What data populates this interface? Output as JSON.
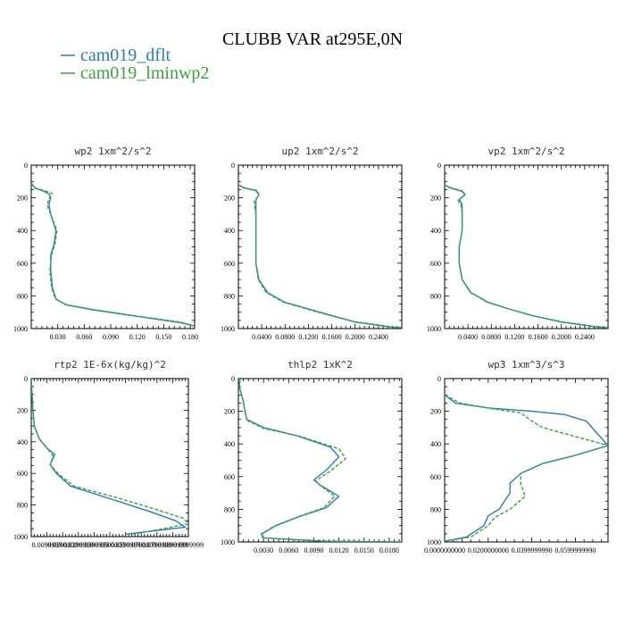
{
  "title": "CLUBB VAR at295E,0N",
  "colors": {
    "dflt": "#2b7bb9",
    "lminwp2": "#3aa43a",
    "axis": "#000000"
  },
  "legend": [
    {
      "label": "cam019_dflt",
      "color": "#2b7bb9",
      "dash": false
    },
    {
      "label": "cam019_lminwp2",
      "color": "#3aa43a",
      "dash": true
    }
  ],
  "chart_data": [
    {
      "type": "line",
      "title": "wp2  1xm^2/s^2",
      "xlim": [
        0,
        0.185
      ],
      "ylim": [
        0,
        1000
      ],
      "y_inverted": true,
      "xticks": [
        0.03,
        0.06,
        0.09,
        0.12,
        0.15,
        0.18
      ],
      "xticklabels": [
        "0.030",
        "0.060",
        "0.090",
        "0.120",
        "0.150",
        "0.180"
      ],
      "yticks": [
        0,
        200,
        400,
        600,
        800,
        1000
      ],
      "yticklabels": [
        "0",
        "200",
        "400",
        "600",
        "800",
        "1000"
      ],
      "series": [
        {
          "name": "cam019_dflt",
          "x": [
            0,
            0.004,
            0.012,
            0.02,
            0.022,
            0.02,
            0.022,
            0.028,
            0.026,
            0.022,
            0.022,
            0.024,
            0.028,
            0.04,
            0.07,
            0.12,
            0.17,
            0.185
          ],
          "y": [
            110,
            140,
            155,
            175,
            200,
            240,
            300,
            400,
            480,
            550,
            650,
            750,
            820,
            855,
            885,
            925,
            965,
            985
          ]
        },
        {
          "name": "cam019_lminwp2",
          "x": [
            0,
            0.005,
            0.015,
            0.024,
            0.02,
            0.018,
            0.022,
            0.029,
            0.027,
            0.023,
            0.021,
            0.023,
            0.027,
            0.038,
            0.068,
            0.118,
            0.17,
            0.185
          ],
          "y": [
            110,
            140,
            155,
            175,
            205,
            245,
            300,
            400,
            480,
            550,
            650,
            750,
            815,
            852,
            882,
            922,
            962,
            985
          ]
        }
      ]
    },
    {
      "type": "line",
      "title": "up2  1xm^2/s^2",
      "xlim": [
        0,
        0.28
      ],
      "ylim": [
        0,
        1000
      ],
      "y_inverted": true,
      "xticks": [
        0.04,
        0.08,
        0.12,
        0.16,
        0.2,
        0.24
      ],
      "xticklabels": [
        "0.0400",
        "0.0800",
        "0.1200",
        "0.1600",
        "0.2000",
        "0.2400"
      ],
      "yticks": [
        0,
        200,
        400,
        600,
        800,
        1000
      ],
      "yticklabels": [
        "0",
        "200",
        "400",
        "600",
        "800",
        "1000"
      ],
      "series": [
        {
          "name": "cam019_dflt",
          "x": [
            0,
            0.01,
            0.03,
            0.035,
            0.03,
            0.03,
            0.03,
            0.03,
            0.03,
            0.03,
            0.035,
            0.05,
            0.08,
            0.12,
            0.16,
            0.2,
            0.26,
            0.28
          ],
          "y": [
            120,
            140,
            155,
            180,
            215,
            245,
            300,
            400,
            500,
            600,
            700,
            780,
            840,
            880,
            920,
            960,
            990,
            995
          ]
        },
        {
          "name": "cam019_lminwp2",
          "x": [
            0,
            0.012,
            0.033,
            0.035,
            0.027,
            0.028,
            0.03,
            0.03,
            0.03,
            0.03,
            0.034,
            0.048,
            0.077,
            0.115,
            0.155,
            0.2,
            0.26,
            0.28
          ],
          "y": [
            120,
            140,
            155,
            185,
            220,
            250,
            300,
            400,
            500,
            600,
            700,
            780,
            838,
            878,
            918,
            958,
            988,
            995
          ]
        }
      ]
    },
    {
      "type": "line",
      "title": "vp2  1xm^2/s^2",
      "xlim": [
        0,
        0.28
      ],
      "ylim": [
        0,
        1000
      ],
      "y_inverted": true,
      "xticks": [
        0.04,
        0.08,
        0.12,
        0.16,
        0.2,
        0.24
      ],
      "xticklabels": [
        "0.0400",
        "0.0800",
        "0.1200",
        "0.1600",
        "0.2000",
        "0.2400"
      ],
      "yticks": [
        0,
        200,
        400,
        600,
        800,
        1000
      ],
      "yticklabels": [
        "0",
        "200",
        "400",
        "600",
        "800",
        "1000"
      ],
      "series": [
        {
          "name": "cam019_dflt",
          "x": [
            0,
            0.01,
            0.03,
            0.035,
            0.025,
            0.03,
            0.03,
            0.03,
            0.025,
            0.025,
            0.03,
            0.045,
            0.075,
            0.11,
            0.15,
            0.2,
            0.26,
            0.28
          ],
          "y": [
            120,
            140,
            160,
            180,
            210,
            240,
            300,
            400,
            500,
            600,
            700,
            780,
            840,
            880,
            920,
            960,
            990,
            995
          ]
        },
        {
          "name": "cam019_lminwp2",
          "x": [
            0,
            0.012,
            0.033,
            0.034,
            0.023,
            0.028,
            0.03,
            0.03,
            0.025,
            0.025,
            0.03,
            0.044,
            0.073,
            0.108,
            0.148,
            0.2,
            0.26,
            0.28
          ],
          "y": [
            120,
            140,
            160,
            185,
            215,
            245,
            300,
            400,
            500,
            600,
            700,
            780,
            838,
            878,
            918,
            958,
            988,
            995
          ]
        }
      ]
    },
    {
      "type": "line",
      "title": "rtp2  1E-6x(kg/kg)^2",
      "xlim": [
        0,
        0.1
      ],
      "ylim": [
        0,
        1000
      ],
      "y_inverted": true,
      "xticks": [
        0.01,
        0.02,
        0.03,
        0.04,
        0.05,
        0.06,
        0.07,
        0.08,
        0.09,
        0.1
      ],
      "xticklabels": [
        "0.0099999",
        "0.0200000",
        "0.0299999",
        "0.0399999",
        "0.0500000",
        "0.0599999",
        "0.0700000",
        "0.0799999",
        "0.0899999",
        "0.0999999"
      ],
      "yticks": [
        0,
        200,
        400,
        600,
        800,
        1000
      ],
      "yticklabels": [
        "0",
        "200",
        "400",
        "600",
        "800",
        "1000"
      ],
      "series": [
        {
          "name": "cam019_dflt",
          "x": [
            0,
            0.001,
            0.002,
            0.005,
            0.01,
            0.015,
            0.012,
            0.016,
            0.025,
            0.05,
            0.075,
            0.092,
            0.098,
            0.06
          ],
          "y": [
            0,
            200,
            300,
            380,
            440,
            480,
            545,
            600,
            680,
            760,
            840,
            900,
            940,
            985
          ]
        },
        {
          "name": "cam019_lminwp2",
          "x": [
            0,
            0.001,
            0.002,
            0.005,
            0.01,
            0.014,
            0.012,
            0.017,
            0.027,
            0.055,
            0.08,
            0.097,
            0.1,
            0.065
          ],
          "y": [
            0,
            200,
            300,
            380,
            440,
            490,
            545,
            600,
            680,
            755,
            830,
            885,
            920,
            985
          ]
        }
      ]
    },
    {
      "type": "line",
      "title": "thlp2  1xK^2",
      "xlim": [
        0,
        0.0195
      ],
      "ylim": [
        0,
        1000
      ],
      "y_inverted": true,
      "xticks": [
        0.003,
        0.006,
        0.009,
        0.012,
        0.015,
        0.018
      ],
      "xticklabels": [
        "0.0030",
        "0.0060",
        "0.0090",
        "0.0120",
        "0.0150",
        "0.0180"
      ],
      "yticks": [
        0,
        200,
        400,
        600,
        800,
        1000
      ],
      "yticklabels": [
        "0",
        "200",
        "400",
        "600",
        "800",
        "1000"
      ],
      "series": [
        {
          "name": "cam019_dflt",
          "x": [
            0.0002,
            0.0001,
            0.0005,
            0.001,
            0.003,
            0.007,
            0.011,
            0.012,
            0.0105,
            0.009,
            0.0097,
            0.012,
            0.0105,
            0.007,
            0.0045,
            0.0028,
            0.003,
            0.01,
            0.0195
          ],
          "y": [
            0,
            50,
            120,
            250,
            300,
            350,
            420,
            480,
            560,
            620,
            650,
            720,
            790,
            850,
            900,
            950,
            975,
            995,
            1000
          ]
        },
        {
          "name": "cam019_lminwp2",
          "x": [
            0.0002,
            0.0001,
            0.0005,
            0.001,
            0.003,
            0.0075,
            0.012,
            0.0128,
            0.011,
            0.0092,
            0.0098,
            0.0115,
            0.0102,
            0.0068,
            0.0043,
            0.0027,
            0.0029,
            0.01,
            0.0195
          ],
          "y": [
            0,
            50,
            120,
            255,
            305,
            355,
            430,
            490,
            565,
            625,
            655,
            720,
            790,
            852,
            902,
            952,
            975,
            995,
            1000
          ]
        }
      ]
    },
    {
      "type": "line",
      "title": "wp3  1xm^3/s^3",
      "xlim": [
        0,
        0.075
      ],
      "ylim": [
        0,
        1000
      ],
      "y_inverted": true,
      "xticks": [
        0,
        0.02,
        0.04,
        0.06
      ],
      "xticklabels": [
        "0.0000000000",
        "0.0200000000",
        "0.0399999990",
        "0.0599999990"
      ],
      "yticks": [
        0,
        200,
        400,
        600,
        800,
        1000
      ],
      "yticklabels": [
        "0",
        "200",
        "400",
        "600",
        "800",
        "1000"
      ],
      "series": [
        {
          "name": "cam019_dflt",
          "x": [
            0,
            0.005,
            0.02,
            0.04,
            0.055,
            0.065,
            0.075,
            0.06,
            0.045,
            0.035,
            0.03,
            0.03,
            0.025,
            0.02,
            0.018,
            0.01,
            0
          ],
          "y": [
            100,
            150,
            180,
            200,
            220,
            260,
            410,
            470,
            520,
            580,
            640,
            700,
            800,
            840,
            900,
            970,
            995
          ]
        },
        {
          "name": "cam019_lminwp2",
          "x": [
            0,
            0.007,
            0.022,
            0.035,
            0.04,
            0.045,
            0.075,
            0.06,
            0.045,
            0.035,
            0.035,
            0.037,
            0.03,
            0.023,
            0.02,
            0.012,
            0
          ],
          "y": [
            100,
            150,
            185,
            210,
            260,
            300,
            410,
            470,
            520,
            580,
            650,
            720,
            800,
            850,
            900,
            970,
            995
          ]
        }
      ]
    }
  ]
}
